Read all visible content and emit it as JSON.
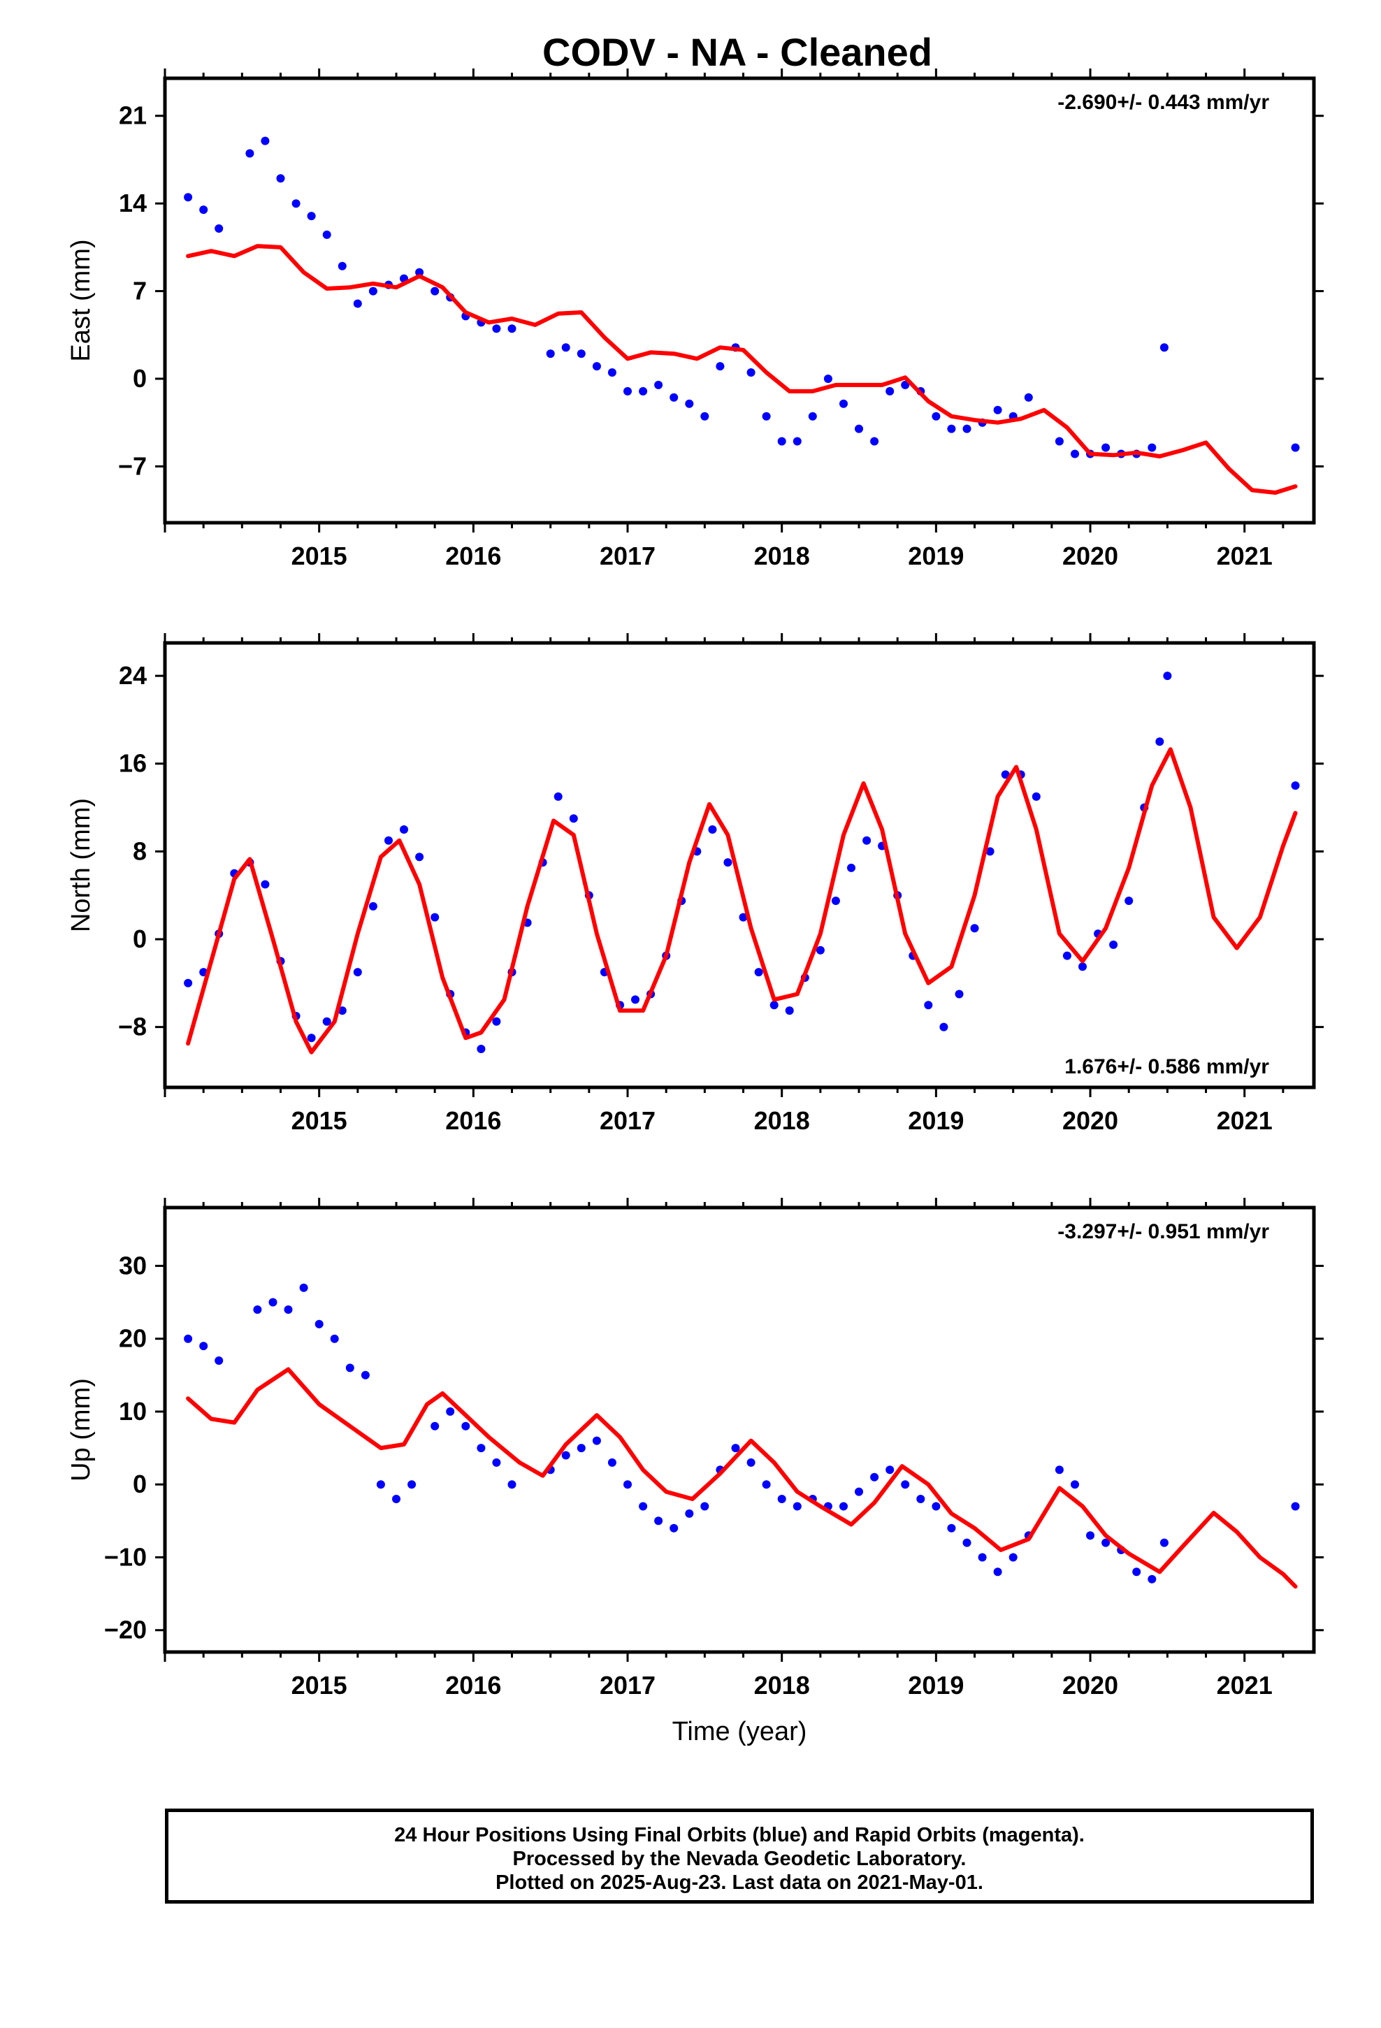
{
  "title": "CODV  - NA - Cleaned",
  "footer": {
    "lines": [
      "24 Hour Positions Using Final Orbits (blue) and Rapid Orbits (magenta).",
      "Processed by the Nevada Geodetic Laboratory.",
      "Plotted on 2025-Aug-23. Last data on 2021-May-01."
    ]
  },
  "colors": {
    "data_points": "#0000ff",
    "fit_line": "#ff0000",
    "axes": "#000000"
  },
  "chart_data": [
    {
      "type": "scatter",
      "ylabel": "East (mm)",
      "xlabel": "",
      "xlim": [
        2014.0,
        2021.45
      ],
      "ylim": [
        -11.5,
        24.0
      ],
      "xticks": [
        2015,
        2016,
        2017,
        2018,
        2019,
        2020,
        2021
      ],
      "xtick_labels": [
        "2015",
        "2016",
        "2017",
        "2018",
        "2019",
        "2020",
        "2021"
      ],
      "yticks": [
        -7,
        0,
        7,
        14,
        21
      ],
      "ytick_labels": [
        "−7",
        "0",
        "7",
        "14",
        "21"
      ],
      "rate_label": "-2.690+/- 0.443 mm/yr",
      "rate_position": "top-right",
      "data_series": {
        "name": "Final Orbits",
        "x": [
          2014.15,
          2014.25,
          2014.35,
          2014.55,
          2014.65,
          2014.75,
          2014.85,
          2014.95,
          2015.05,
          2015.15,
          2015.25,
          2015.35,
          2015.45,
          2015.55,
          2015.65,
          2015.75,
          2015.85,
          2015.95,
          2016.05,
          2016.15,
          2016.25,
          2016.5,
          2016.6,
          2016.7,
          2016.8,
          2016.9,
          2017.0,
          2017.1,
          2017.2,
          2017.3,
          2017.4,
          2017.5,
          2017.6,
          2017.7,
          2017.8,
          2017.9,
          2018.0,
          2018.1,
          2018.2,
          2018.3,
          2018.4,
          2018.5,
          2018.6,
          2018.7,
          2018.8,
          2018.9,
          2019.0,
          2019.1,
          2019.2,
          2019.3,
          2019.4,
          2019.5,
          2019.6,
          2019.8,
          2019.9,
          2020.0,
          2020.1,
          2020.2,
          2020.3,
          2020.4,
          2020.48,
          2021.33
        ],
        "y": [
          14.5,
          13.5,
          12.0,
          18.0,
          19.0,
          16.0,
          14.0,
          13.0,
          11.5,
          9.0,
          6.0,
          7.0,
          7.5,
          8.0,
          8.5,
          7.0,
          6.5,
          5.0,
          4.5,
          4.0,
          4.0,
          2.0,
          2.5,
          2.0,
          1.0,
          0.5,
          -1.0,
          -1.0,
          -0.5,
          -1.5,
          -2.0,
          -3.0,
          1.0,
          2.5,
          0.5,
          -3.0,
          -5.0,
          -5.0,
          -3.0,
          0.0,
          -2.0,
          -4.0,
          -5.0,
          -1.0,
          -0.5,
          -1.0,
          -3.0,
          -4.0,
          -4.0,
          -3.5,
          -2.5,
          -3.0,
          -1.5,
          -5.0,
          -6.0,
          -6.0,
          -5.5,
          -6.0,
          -6.0,
          -5.5,
          2.5,
          -5.5
        ]
      },
      "fit_series": {
        "name": "Fit",
        "x": [
          2014.15,
          2014.3,
          2014.45,
          2014.6,
          2014.75,
          2014.9,
          2015.05,
          2015.2,
          2015.35,
          2015.5,
          2015.65,
          2015.8,
          2015.95,
          2016.1,
          2016.25,
          2016.4,
          2016.55,
          2016.7,
          2016.85,
          2017.0,
          2017.15,
          2017.3,
          2017.45,
          2017.6,
          2017.75,
          2017.9,
          2018.05,
          2018.2,
          2018.35,
          2018.5,
          2018.65,
          2018.8,
          2018.95,
          2019.1,
          2019.25,
          2019.4,
          2019.55,
          2019.7,
          2019.85,
          2020.0,
          2020.15,
          2020.3,
          2020.45,
          2020.6,
          2020.75,
          2020.9,
          2021.05,
          2021.2,
          2021.33
        ],
        "y": [
          9.8,
          10.2,
          9.8,
          10.6,
          10.5,
          8.5,
          7.2,
          7.3,
          7.6,
          7.3,
          8.2,
          7.3,
          5.3,
          4.5,
          4.8,
          4.3,
          5.2,
          5.3,
          3.3,
          1.6,
          2.1,
          2.0,
          1.6,
          2.5,
          2.3,
          0.5,
          -1.0,
          -1.0,
          -0.5,
          -0.5,
          -0.5,
          0.1,
          -1.8,
          -3.0,
          -3.3,
          -3.5,
          -3.2,
          -2.5,
          -3.9,
          -6.0,
          -6.1,
          -5.9,
          -6.2,
          -5.7,
          -5.1,
          -7.2,
          -8.9,
          -9.1,
          -8.6
        ]
      }
    },
    {
      "type": "scatter",
      "ylabel": "North (mm)",
      "xlabel": "",
      "xlim": [
        2014.0,
        2021.45
      ],
      "ylim": [
        -13.5,
        27.0
      ],
      "xticks": [
        2015,
        2016,
        2017,
        2018,
        2019,
        2020,
        2021
      ],
      "xtick_labels": [
        "2015",
        "2016",
        "2017",
        "2018",
        "2019",
        "2020",
        "2021"
      ],
      "yticks": [
        -8,
        0,
        8,
        16,
        24
      ],
      "ytick_labels": [
        "−8",
        "0",
        "8",
        "16",
        "24"
      ],
      "rate_label": "1.676+/- 0.586 mm/yr",
      "rate_position": "bottom-right",
      "data_series": {
        "name": "Final Orbits",
        "x": [
          2014.15,
          2014.25,
          2014.35,
          2014.45,
          2014.55,
          2014.65,
          2014.75,
          2014.85,
          2014.95,
          2015.05,
          2015.15,
          2015.25,
          2015.35,
          2015.45,
          2015.55,
          2015.65,
          2015.75,
          2015.85,
          2015.95,
          2016.05,
          2016.15,
          2016.25,
          2016.35,
          2016.45,
          2016.55,
          2016.65,
          2016.75,
          2016.85,
          2016.95,
          2017.05,
          2017.15,
          2017.25,
          2017.35,
          2017.45,
          2017.55,
          2017.65,
          2017.75,
          2017.85,
          2017.95,
          2018.05,
          2018.15,
          2018.25,
          2018.35,
          2018.45,
          2018.55,
          2018.65,
          2018.75,
          2018.85,
          2018.95,
          2019.05,
          2019.15,
          2019.25,
          2019.35,
          2019.45,
          2019.55,
          2019.65,
          2019.85,
          2019.95,
          2020.05,
          2020.15,
          2020.25,
          2020.35,
          2020.45,
          2020.5,
          2021.33
        ],
        "y": [
          -4.0,
          -3.0,
          0.5,
          6.0,
          7.0,
          5.0,
          -2.0,
          -7.0,
          -9.0,
          -7.5,
          -6.5,
          -3.0,
          3.0,
          9.0,
          10.0,
          7.5,
          2.0,
          -5.0,
          -8.5,
          -10.0,
          -7.5,
          -3.0,
          1.5,
          7.0,
          13.0,
          11.0,
          4.0,
          -3.0,
          -6.0,
          -5.5,
          -5.0,
          -1.5,
          3.5,
          8.0,
          10.0,
          7.0,
          2.0,
          -3.0,
          -6.0,
          -6.5,
          -3.5,
          -1.0,
          3.5,
          6.5,
          9.0,
          8.5,
          4.0,
          -1.5,
          -6.0,
          -8.0,
          -5.0,
          1.0,
          8.0,
          15.0,
          15.0,
          13.0,
          -1.5,
          -2.5,
          0.5,
          -0.5,
          3.5,
          12.0,
          18.0,
          24.0,
          14.0
        ]
      },
      "fit_series": {
        "name": "Fit",
        "x": [
          2014.15,
          2014.3,
          2014.45,
          2014.55,
          2014.7,
          2014.85,
          2014.95,
          2015.1,
          2015.25,
          2015.4,
          2015.52,
          2015.65,
          2015.8,
          2015.95,
          2016.05,
          2016.2,
          2016.35,
          2016.52,
          2016.65,
          2016.8,
          2016.95,
          2017.1,
          2017.25,
          2017.4,
          2017.53,
          2017.65,
          2017.8,
          2017.95,
          2018.1,
          2018.25,
          2018.4,
          2018.53,
          2018.65,
          2018.8,
          2018.95,
          2019.1,
          2019.25,
          2019.4,
          2019.52,
          2019.65,
          2019.8,
          2019.95,
          2020.1,
          2020.25,
          2020.4,
          2020.52,
          2020.65,
          2020.8,
          2020.95,
          2021.1,
          2021.25,
          2021.33
        ],
        "y": [
          -9.5,
          -2.0,
          5.5,
          7.3,
          0.0,
          -7.5,
          -10.3,
          -7.5,
          0.5,
          7.5,
          9.0,
          5.0,
          -3.5,
          -9.0,
          -8.5,
          -5.5,
          3.0,
          10.8,
          9.5,
          0.5,
          -6.5,
          -6.5,
          -1.5,
          7.0,
          12.3,
          9.5,
          1.0,
          -5.5,
          -5.0,
          0.5,
          9.5,
          14.2,
          10.0,
          0.5,
          -4.0,
          -2.5,
          4.0,
          13.0,
          15.7,
          10.0,
          0.5,
          -2.0,
          1.0,
          6.5,
          14.0,
          17.3,
          12.0,
          2.0,
          -0.8,
          2.0,
          8.5,
          11.5
        ]
      }
    },
    {
      "type": "scatter",
      "ylabel": "Up (mm)",
      "xlabel": "Time (year)",
      "xlim": [
        2014.0,
        2021.45
      ],
      "ylim": [
        -23.0,
        38.0
      ],
      "xticks": [
        2015,
        2016,
        2017,
        2018,
        2019,
        2020,
        2021
      ],
      "xtick_labels": [
        "2015",
        "2016",
        "2017",
        "2018",
        "2019",
        "2020",
        "2021"
      ],
      "yticks": [
        -20,
        -10,
        0,
        10,
        20,
        30
      ],
      "ytick_labels": [
        "−20",
        "−10",
        "0",
        "10",
        "20",
        "30"
      ],
      "rate_label": "-3.297+/- 0.951 mm/yr",
      "rate_position": "top-right",
      "data_series": {
        "name": "Final Orbits",
        "x": [
          2014.15,
          2014.25,
          2014.35,
          2014.6,
          2014.7,
          2014.8,
          2014.9,
          2015.0,
          2015.1,
          2015.2,
          2015.3,
          2015.4,
          2015.5,
          2015.6,
          2015.75,
          2015.85,
          2015.95,
          2016.05,
          2016.15,
          2016.25,
          2016.5,
          2016.6,
          2016.7,
          2016.8,
          2016.9,
          2017.0,
          2017.1,
          2017.2,
          2017.3,
          2017.4,
          2017.5,
          2017.6,
          2017.7,
          2017.8,
          2017.9,
          2018.0,
          2018.1,
          2018.2,
          2018.3,
          2018.4,
          2018.5,
          2018.6,
          2018.7,
          2018.8,
          2018.9,
          2019.0,
          2019.1,
          2019.2,
          2019.3,
          2019.4,
          2019.5,
          2019.6,
          2019.8,
          2019.9,
          2020.0,
          2020.1,
          2020.2,
          2020.3,
          2020.4,
          2020.48,
          2021.33
        ],
        "y": [
          20.0,
          19.0,
          17.0,
          24.0,
          25.0,
          24.0,
          27.0,
          22.0,
          20.0,
          16.0,
          15.0,
          0.0,
          -2.0,
          0.0,
          8.0,
          10.0,
          8.0,
          5.0,
          3.0,
          0.0,
          2.0,
          4.0,
          5.0,
          6.0,
          3.0,
          0.0,
          -3.0,
          -5.0,
          -6.0,
          -4.0,
          -3.0,
          2.0,
          5.0,
          3.0,
          0.0,
          -2.0,
          -3.0,
          -2.0,
          -3.0,
          -3.0,
          -1.0,
          1.0,
          2.0,
          0.0,
          -2.0,
          -3.0,
          -6.0,
          -8.0,
          -10.0,
          -12.0,
          -10.0,
          -7.0,
          2.0,
          0.0,
          -7.0,
          -8.0,
          -9.0,
          -12.0,
          -13.0,
          -8.0,
          -3.0
        ]
      },
      "fit_series": {
        "name": "Fit",
        "x": [
          2014.15,
          2014.3,
          2014.45,
          2014.6,
          2014.8,
          2015.0,
          2015.2,
          2015.4,
          2015.55,
          2015.7,
          2015.8,
          2015.95,
          2016.1,
          2016.3,
          2016.45,
          2016.6,
          2016.8,
          2016.95,
          2017.1,
          2017.25,
          2017.42,
          2017.6,
          2017.8,
          2017.95,
          2018.1,
          2018.25,
          2018.45,
          2018.6,
          2018.78,
          2018.95,
          2019.1,
          2019.25,
          2019.42,
          2019.6,
          2019.8,
          2019.95,
          2020.1,
          2020.25,
          2020.45,
          2020.6,
          2020.8,
          2020.95,
          2021.1,
          2021.25,
          2021.33
        ],
        "y": [
          11.8,
          9.0,
          8.5,
          13.0,
          15.8,
          11.0,
          8.0,
          5.0,
          5.5,
          11.0,
          12.5,
          9.5,
          6.5,
          3.0,
          1.2,
          5.5,
          9.5,
          6.5,
          2.0,
          -1.0,
          -2.0,
          1.5,
          6.0,
          3.0,
          -1.0,
          -3.0,
          -5.5,
          -2.5,
          2.5,
          0.0,
          -4.0,
          -6.0,
          -9.0,
          -7.5,
          -0.5,
          -3.0,
          -7.0,
          -9.5,
          -12.0,
          -8.5,
          -3.9,
          -6.5,
          -10.0,
          -12.3,
          -14.0
        ]
      }
    }
  ]
}
